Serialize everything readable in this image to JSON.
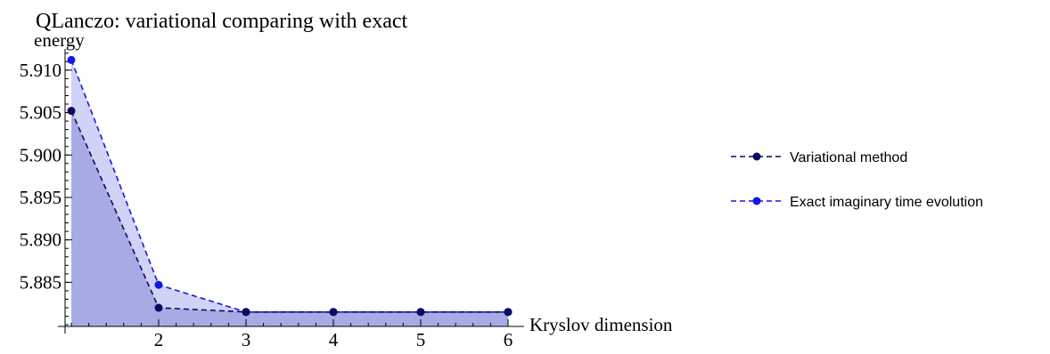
{
  "chart_data": {
    "type": "line",
    "title": "QLanczo: variational comparing with exact",
    "xlabel": "Kryslov dimension",
    "ylabel": "energy",
    "x": [
      1,
      2,
      3,
      4,
      5,
      6
    ],
    "xticks": [
      "2",
      "3",
      "4",
      "5",
      "6"
    ],
    "yticks": [
      "5.885",
      "5.890",
      "5.895",
      "5.900",
      "5.905",
      "5.910"
    ],
    "xlim": [
      1,
      6
    ],
    "ylim": [
      5.8798,
      5.9125
    ],
    "grid": false,
    "filled": true,
    "legend_position": "right",
    "series": [
      {
        "name": "Variational method",
        "values": [
          5.9052,
          5.882,
          5.8815,
          5.8815,
          5.8815,
          5.8815
        ],
        "color": "#0a0a60",
        "fill": "#a8aae4",
        "style": "dashed"
      },
      {
        "name": "Exact imaginary time evolution",
        "values": [
          5.9112,
          5.8847,
          5.8815,
          5.8815,
          5.8815,
          5.8815
        ],
        "color": "#1515e6",
        "fill": "#d0d2f6",
        "style": "dashed"
      }
    ]
  }
}
